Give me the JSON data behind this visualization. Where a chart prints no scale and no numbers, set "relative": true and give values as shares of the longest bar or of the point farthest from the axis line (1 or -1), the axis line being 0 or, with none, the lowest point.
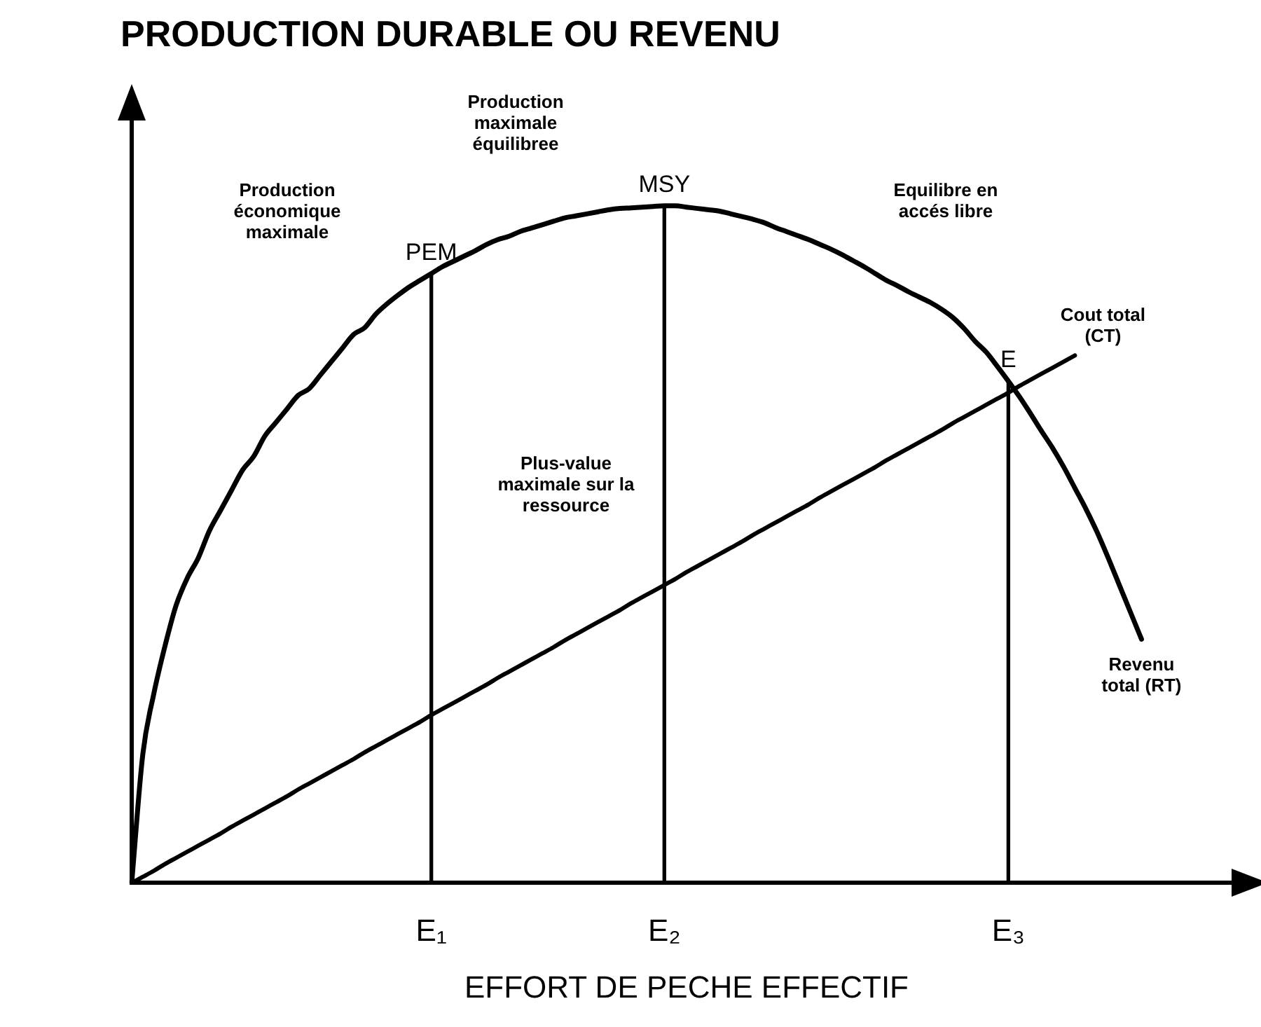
{
  "chart_data": {
    "type": "line",
    "title": "PRODUCTION DURABLE OU REVENU",
    "xlabel": "EFFORT DE PECHE EFFECTIF",
    "relative": true,
    "categories": [
      null,
      null,
      null,
      null,
      null,
      null,
      null,
      null,
      null,
      null,
      null,
      null,
      null,
      null,
      null,
      null,
      null,
      null,
      null,
      null,
      null,
      null,
      null,
      null,
      null,
      null,
      null,
      "E₁",
      null,
      null,
      null,
      null,
      null,
      null,
      null,
      null,
      null,
      null,
      null,
      null,
      null,
      null,
      null,
      null,
      null,
      null,
      null,
      null,
      "E₂",
      null,
      null,
      null,
      null,
      null,
      null,
      null,
      null,
      null,
      null,
      null,
      null,
      null,
      null,
      null,
      null,
      null,
      null,
      null,
      null,
      null,
      null,
      null,
      null,
      null,
      null,
      null,
      null,
      null,
      null,
      "E₃",
      null,
      null,
      null,
      null,
      null,
      null,
      null,
      null,
      null,
      null,
      null,
      null,
      null,
      null,
      null,
      null,
      null,
      null,
      null,
      null,
      null
    ],
    "grid": false,
    "legend": false,
    "marker": "none",
    "line_style": "solid",
    "series": [
      {
        "name": "Revenu total (RT)",
        "color": "#000000",
        "values": [
          0,
          0.19,
          0.28,
          0.35,
          0.41,
          0.45,
          0.48,
          0.52,
          0.55,
          0.58,
          0.61,
          0.63,
          0.66,
          0.68,
          0.7,
          0.72,
          0.73,
          0.75,
          0.77,
          0.79,
          0.81,
          0.82,
          0.84,
          0.855,
          0.868,
          0.88,
          0.89,
          0.9,
          0.91,
          0.918,
          0.926,
          0.934,
          0.943,
          0.95,
          0.955,
          0.962,
          0.967,
          0.972,
          0.977,
          0.982,
          0.985,
          0.988,
          0.991,
          0.994,
          0.996,
          0.997,
          0.998,
          0.999,
          1,
          1,
          0.998,
          0.996,
          0.994,
          0.992,
          0.988,
          0.984,
          0.98,
          0.975,
          0.968,
          0.962,
          0.956,
          0.95,
          0.943,
          0.936,
          0.928,
          0.919,
          0.91,
          0.9,
          0.89,
          0.882,
          0.873,
          0.865,
          0.857,
          0.847,
          0.835,
          0.819,
          0.8,
          0.784,
          0.763,
          0.741,
          0.718,
          0.693,
          0.667,
          0.642,
          0.614,
          0.583,
          0.552,
          0.518,
          0.48,
          0.44,
          0.4,
          0.36,
          null,
          null,
          null,
          null,
          null,
          null,
          null,
          null,
          null
        ]
      },
      {
        "name": "Cout total (CT)",
        "color": "#000000",
        "values": [
          0,
          0.009,
          0.018,
          0.028,
          0.037,
          0.046,
          0.055,
          0.064,
          0.073,
          0.083,
          0.092,
          0.101,
          0.11,
          0.119,
          0.128,
          0.138,
          0.147,
          0.156,
          0.165,
          0.174,
          0.183,
          0.193,
          0.202,
          0.211,
          0.22,
          0.229,
          0.238,
          0.248,
          0.257,
          0.266,
          0.275,
          0.284,
          0.293,
          0.303,
          0.312,
          0.321,
          0.33,
          0.339,
          0.348,
          0.358,
          0.367,
          0.376,
          0.385,
          0.394,
          0.403,
          0.413,
          0.422,
          0.431,
          0.44,
          0.449,
          0.459,
          0.468,
          0.477,
          0.486,
          0.495,
          0.504,
          0.514,
          0.523,
          0.532,
          0.541,
          0.55,
          0.559,
          0.569,
          0.578,
          0.587,
          0.596,
          0.605,
          0.614,
          0.624,
          0.633,
          0.642,
          0.651,
          0.66,
          0.669,
          0.679,
          0.688,
          0.697,
          0.706,
          0.715,
          0.724,
          0.734,
          0.743,
          0.752,
          0.761,
          0.77,
          0.779,
          null,
          null,
          null,
          null,
          null,
          null,
          null,
          null,
          null,
          null,
          null,
          null,
          null,
          null,
          null
        ]
      },
      {
        "type": "bar",
        "color": "#000000",
        "values": [
          null,
          null,
          null,
          null,
          null,
          null,
          null,
          null,
          null,
          null,
          null,
          null,
          null,
          null,
          null,
          null,
          null,
          null,
          null,
          null,
          null,
          null,
          null,
          null,
          null,
          null,
          null,
          0.9,
          null,
          null,
          null,
          null,
          null,
          null,
          null,
          null,
          null,
          null,
          null,
          null,
          null,
          null,
          null,
          null,
          null,
          null,
          null,
          null,
          1,
          null,
          null,
          null,
          null,
          null,
          null,
          null,
          null,
          null,
          null,
          null,
          null,
          null,
          null,
          null,
          null,
          null,
          null,
          null,
          null,
          null,
          null,
          null,
          null,
          null,
          null,
          null,
          null,
          null,
          null,
          0.741,
          null,
          null,
          null,
          null,
          null,
          null,
          null,
          null,
          null,
          null,
          null,
          null,
          null,
          null,
          null,
          null,
          null,
          null,
          null,
          null,
          null
        ]
      }
    ],
    "annotations": [
      {
        "text": "PEM",
        "x": "E₁",
        "y": 0.9
      },
      {
        "text": "MSY",
        "x": "E₂",
        "y": 1
      },
      {
        "text": "E",
        "x": "E₃",
        "y": 0.741
      },
      "Production économique maximale",
      "Production maximale équilibree",
      "Equilibre en accés libre",
      "Plus-value maximale sur la ressource"
    ]
  }
}
